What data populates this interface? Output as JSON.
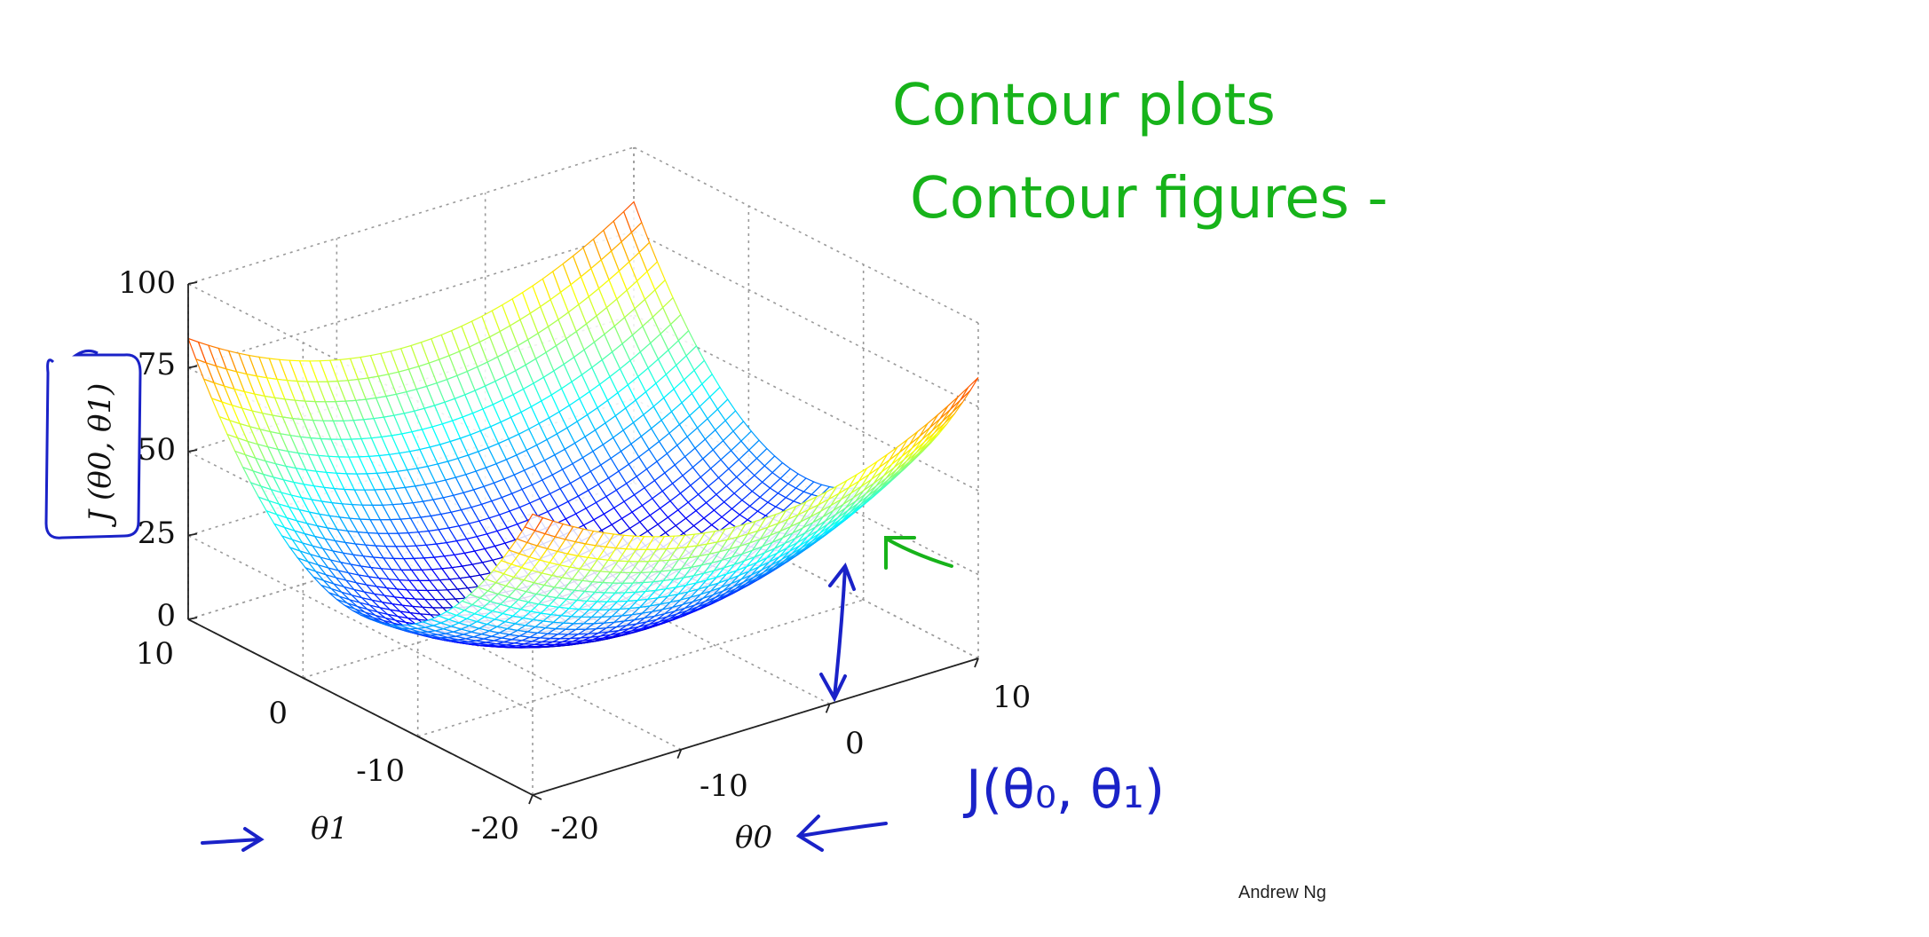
{
  "chart_data": {
    "type": "surface",
    "function": "J(theta0, theta1)",
    "x_axis": {
      "label": "θ0",
      "ticks": [
        "-20",
        "-10",
        "0",
        "10"
      ],
      "range": [
        -20,
        10
      ]
    },
    "y_axis": {
      "label": "θ1",
      "ticks": [
        "-20",
        "-10",
        "0",
        "10"
      ],
      "range": [
        -20,
        10
      ]
    },
    "z_axis": {
      "label": "J (θ0, θ1)",
      "ticks": [
        "0",
        "25",
        "50",
        "75",
        "100"
      ],
      "range": [
        0,
        100
      ]
    },
    "grid": true,
    "colormap": "jet"
  },
  "annotations": {
    "heading1": "Contour plots",
    "heading2": "Contour figures -",
    "cost_expr": "J(θ₀, θ₁)"
  },
  "credit": "Andrew Ng"
}
